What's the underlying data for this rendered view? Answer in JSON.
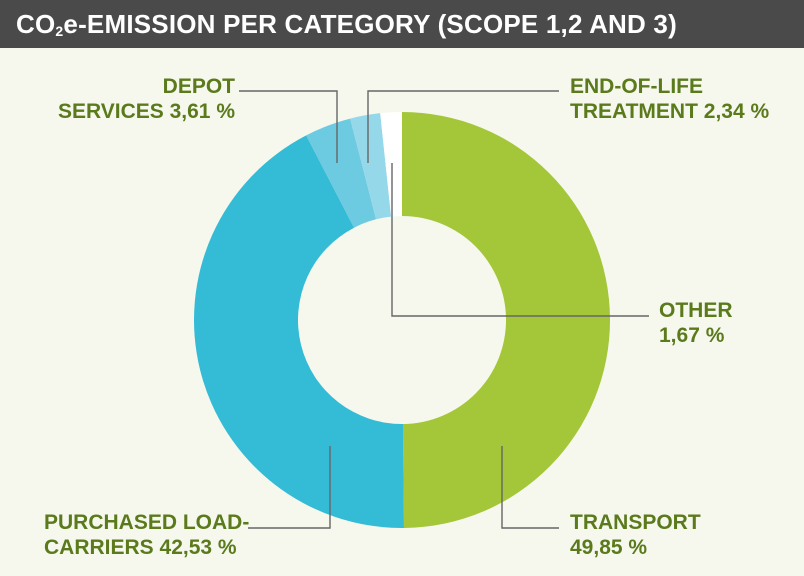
{
  "header": {
    "title_prefix": "CO",
    "title_sub": "2",
    "title_suffix": "e-EMISSION PER CATEGORY (SCOPE 1,2 AND 3)"
  },
  "colors": {
    "transport": "#a4c639",
    "purchased": "#34bbd6",
    "depot": "#6ccae1",
    "eol": "#95d8ea",
    "other": "#ffffff",
    "label": "#5b7a1c",
    "leader": "#666666"
  },
  "labels": {
    "depot": {
      "line1": "DEPOT",
      "line2": "SERVICES 3,61 %"
    },
    "eol": {
      "line1": "END-OF-LIFE",
      "line2": "TREATMENT 2,34 %"
    },
    "other": {
      "line1": "OTHER",
      "line2": "1,67 %"
    },
    "transport": {
      "line1": "TRANSPORT",
      "line2": "49,85 %"
    },
    "purchased": {
      "line1": "PURCHASED LOAD-",
      "line2": "CARRIERS 42,53 %"
    }
  },
  "chart_data": {
    "type": "pie",
    "title": "CO2e-EMISSION PER CATEGORY (SCOPE 1,2 AND 3)",
    "unit": "%",
    "slices": [
      {
        "key": "transport",
        "label": "TRANSPORT",
        "value": 49.85,
        "color": "#a4c639"
      },
      {
        "key": "purchased",
        "label": "PURCHASED LOAD-CARRIERS",
        "value": 42.53,
        "color": "#34bbd6"
      },
      {
        "key": "depot",
        "label": "DEPOT SERVICES",
        "value": 3.61,
        "color": "#6ccae1"
      },
      {
        "key": "eol",
        "label": "END-OF-LIFE TREATMENT",
        "value": 2.34,
        "color": "#95d8ea"
      },
      {
        "key": "other",
        "label": "OTHER",
        "value": 1.67,
        "color": "#ffffff"
      }
    ]
  }
}
